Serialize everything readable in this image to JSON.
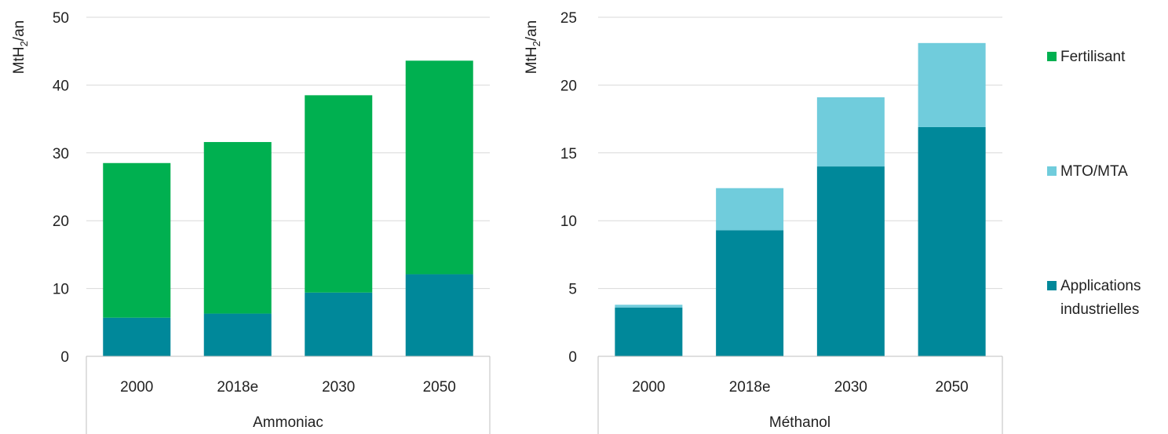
{
  "ylabel_parts": {
    "main": "MtH",
    "sub": "2",
    "unit": "/an"
  },
  "legend": {
    "entries": [
      {
        "lines": [
          "Fertilisant"
        ],
        "color": "#00b050"
      },
      {
        "lines": [
          "MTO/MTA"
        ],
        "color": "#70ccdc"
      },
      {
        "lines": [
          "Applications",
          "industrielles"
        ],
        "color": "#00889a"
      }
    ]
  },
  "chart_data": [
    {
      "type": "bar",
      "stacked": true,
      "group_label": "Ammoniac",
      "categories": [
        "2000",
        "2018e",
        "2030",
        "2050"
      ],
      "ylim": [
        0,
        50
      ],
      "yticks": [
        "0",
        "10",
        "20",
        "30",
        "40",
        "50"
      ],
      "grid": true,
      "series": [
        {
          "name": "Applications industrielles",
          "color": "#00889a",
          "values": [
            5.7,
            6.3,
            9.4,
            12.1
          ]
        },
        {
          "name": "Fertilisant",
          "color": "#00b050",
          "values": [
            22.8,
            25.3,
            29.1,
            31.5
          ]
        }
      ]
    },
    {
      "type": "bar",
      "stacked": true,
      "group_label": "Méthanol",
      "categories": [
        "2000",
        "2018e",
        "2030",
        "2050"
      ],
      "ylim": [
        0,
        25
      ],
      "yticks": [
        "0",
        "5",
        "10",
        "15",
        "20",
        "25"
      ],
      "grid": true,
      "series": [
        {
          "name": "Applications industrielles",
          "color": "#00889a",
          "values": [
            3.6,
            9.3,
            14.0,
            16.9
          ]
        },
        {
          "name": "MTO/MTA",
          "color": "#70ccdc",
          "values": [
            0.2,
            3.1,
            5.1,
            6.2
          ]
        }
      ]
    }
  ]
}
